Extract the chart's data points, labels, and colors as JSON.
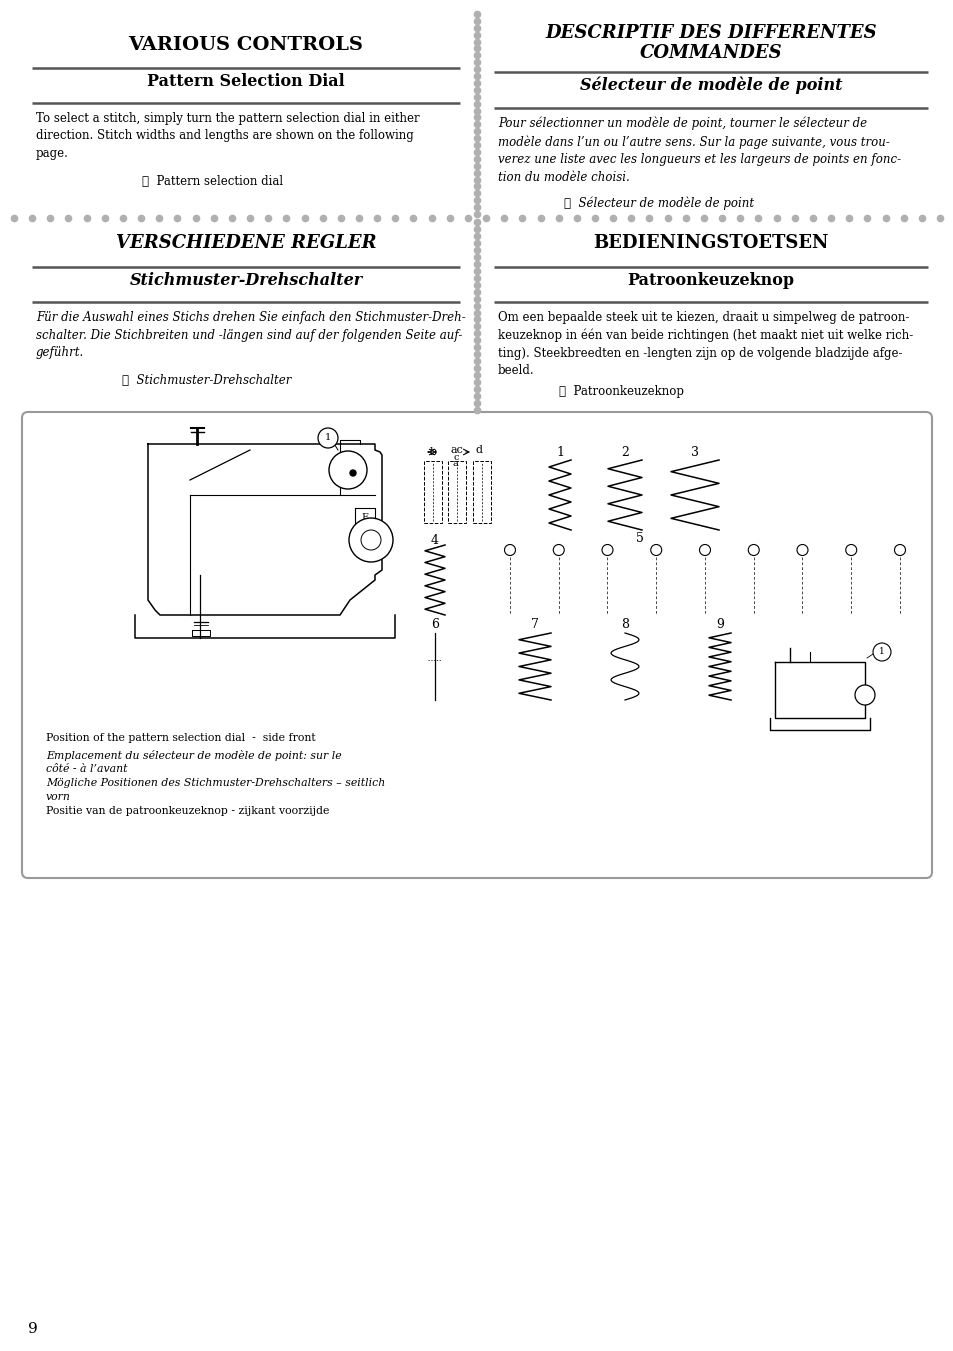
{
  "page_bg": "#ffffff",
  "title_en": "VARIOUS CONTROLS",
  "title_fr": "DESCRIPTIF DES DIFFERENTES\nCOMMANDES",
  "title_de": "VERSCHIEDENE REGLER",
  "title_nl": "BEDIENINGSTOETSEN",
  "subtitle_en": "Pattern Selection Dial",
  "subtitle_fr": "Sélecteur de modèle de point",
  "subtitle_de": "Stichmuster-Drehschalter",
  "subtitle_nl": "Patroonkeuzeknop",
  "body_en": "To select a stitch, simply turn the pattern selection dial in either\ndirection. Stitch widths and lengths are shown on the following\npage.",
  "caption_en": "①  Pattern selection dial",
  "body_fr": "Pour sélectionner un modèle de point, tourner le sélecteur de\nmodèle dans l’un ou l’autre sens. Sur la page suivante, vous trou-\nverez une liste avec les longueurs et les largeurs de points en fonc-\ntion du modèle choisi.",
  "caption_fr": "①  Sélecteur de modèle de point",
  "body_de": "Für die Auswahl eines Stichs drehen Sie einfach den Stichmuster-Dreh-\nschalter. Die Stichbreiten und -längen sind auf der folgenden Seite auf-\ngeführt.",
  "caption_de": "①  Stichmuster-Drehschalter",
  "body_nl": "Om een bepaalde steek uit te kiezen, draait u simpelweg de patroon-\nkeuzeknop in één van beide richtingen (het maakt niet uit welke rich-\nting). Steekbreedten en -lengten zijn op de volgende bladzijde afge-\nbeeld.",
  "caption_nl": "①  Patroonkeuzeknop",
  "bottom_caption1": "Position of the pattern selection dial  -  side front",
  "bottom_caption2": "Emplacement du sélecteur de modèle de point: sur le",
  "bottom_caption2b": "côté - à l’avant",
  "bottom_caption3": "Mögliche Positionen des Stichmuster-Drehschalters – seitlich",
  "bottom_caption3b": "vorn",
  "bottom_caption4": "Positie van de patroonkeuzeknop - zijkant voorzijde",
  "page_number": "9",
  "dot_color": "#b0b0b0",
  "line_color": "#555555",
  "box_border_color": "#999999"
}
